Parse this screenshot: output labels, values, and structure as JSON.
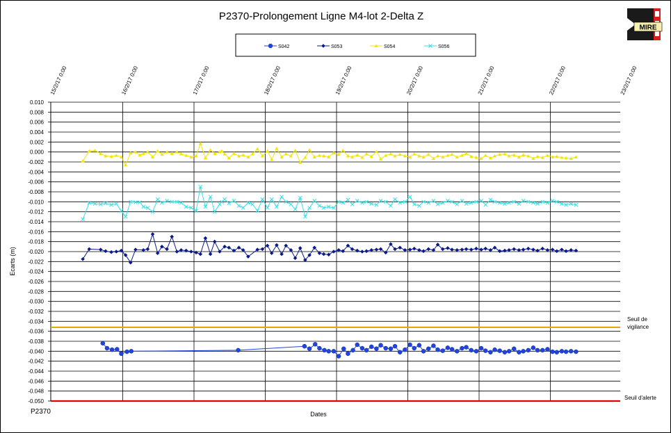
{
  "chart_data": {
    "type": "line",
    "title": "P2370-Prolongement Ligne M4-lot 2-Delta Z",
    "xlabel": "Dates",
    "ylabel": "Ecarts (m)",
    "footer_label": "P2370",
    "ylim": [
      -0.05,
      0.01
    ],
    "y_step": 0.002,
    "y_tick_labels": [
      "0.010",
      "0.008",
      "0.006",
      "0.004",
      "0.002",
      "0.000",
      "-0.002",
      "-0.004",
      "-0.006",
      "-0.008",
      "-0.010",
      "-0.012",
      "-0.014",
      "-0.016",
      "-0.018",
      "-0.020",
      "-0.022",
      "-0.024",
      "-0.026",
      "-0.028",
      "-0.030",
      "-0.032",
      "-0.034",
      "-0.036",
      "-0.038",
      "-0.040",
      "-0.042",
      "-0.044",
      "-0.046",
      "-0.048",
      "-0.050"
    ],
    "xlim_days": [
      0,
      8
    ],
    "x_tick_labels": [
      "15/2/17 0:00",
      "16/2/17 0:00",
      "17/2/17 0:00",
      "18/2/17 0:00",
      "19/2/17 0:00",
      "20/2/17 0:00",
      "21/2/17 0:00",
      "22/2/17 0:00",
      "23/2/17 0:00"
    ],
    "legend": [
      "S042",
      "S053",
      "S054",
      "S056"
    ],
    "thresholds": [
      {
        "name": "Seuil de vigilance",
        "line1": "Seuil de",
        "line2": "vigilance",
        "value": -0.0352,
        "color": "#e8a800"
      },
      {
        "name": "Seuil d'alerte",
        "line1": "Seuil d'alerte",
        "line2": "",
        "value": -0.05,
        "color": "#e00000"
      }
    ],
    "logo_text": "MIRE",
    "series": [
      {
        "name": "S054",
        "color": "#f2e600",
        "marker": "tri",
        "x": [
          0.44,
          0.53,
          0.61,
          0.69,
          0.76,
          0.84,
          0.91,
          0.98,
          1.04,
          1.11,
          1.18,
          1.24,
          1.29,
          1.35,
          1.42,
          1.49,
          1.55,
          1.62,
          1.69,
          1.76,
          1.82,
          1.89,
          1.96,
          2.03,
          2.09,
          2.16,
          2.23,
          2.29,
          2.36,
          2.39,
          2.43,
          2.49,
          2.56,
          2.63,
          2.69,
          2.76,
          2.82,
          2.89,
          2.96,
          3.03,
          3.09,
          3.16,
          3.23,
          3.29,
          3.36,
          3.42,
          3.49,
          3.56,
          3.62,
          3.69,
          3.76,
          3.82,
          3.89,
          3.96,
          4.03,
          4.09,
          4.16,
          4.22,
          4.29,
          4.36,
          4.42,
          4.49,
          4.56,
          4.62,
          4.69,
          4.76,
          4.82,
          4.89,
          4.96,
          5.03,
          5.09,
          5.16,
          5.22,
          5.29,
          5.36,
          5.42,
          5.49,
          5.56,
          5.62,
          5.69,
          5.76,
          5.82,
          5.89,
          5.96,
          6.03,
          6.09,
          6.16,
          6.22,
          6.29,
          6.36,
          6.42,
          6.49,
          6.56,
          6.62,
          6.69,
          6.76,
          6.82,
          6.89,
          6.96,
          7.03,
          7.09,
          7.16,
          7.22,
          7.29,
          7.36
        ],
        "y": [
          -0.0018,
          0.0002,
          0.0003,
          -0.0003,
          -0.0008,
          -0.0009,
          -0.0007,
          -0.001,
          -0.0026,
          -0.0002,
          0.0,
          -0.0006,
          -0.0003,
          0.0,
          -0.001,
          0.0002,
          -0.0005,
          0.0,
          -0.0003,
          0.0,
          -0.0004,
          -0.0007,
          -0.001,
          -0.0008,
          0.0017,
          -0.0012,
          0.0004,
          -0.0003,
          0.0,
          0.0002,
          -0.0004,
          -0.0012,
          -0.0003,
          -0.0008,
          -0.0006,
          -0.001,
          -0.0004,
          0.0006,
          -0.0008,
          0.0002,
          -0.0015,
          0.0007,
          -0.001,
          -0.0004,
          -0.0008,
          0.0003,
          -0.0021,
          -0.0011,
          0.0004,
          -0.001,
          -0.0007,
          -0.0008,
          -0.001,
          -0.0002,
          -0.0005,
          0.0003,
          -0.0008,
          -0.001,
          -0.0006,
          -0.0011,
          -0.0004,
          -0.0009,
          0.0001,
          -0.0014,
          -0.0007,
          -0.0004,
          -0.0008,
          -0.0005,
          -0.0008,
          -0.001,
          -0.0004,
          -0.0008,
          -0.001,
          -0.0005,
          -0.0013,
          -0.0008,
          -0.001,
          -0.0007,
          -0.0005,
          -0.001,
          -0.0007,
          -0.0003,
          -0.0009,
          -0.0011,
          -0.0013,
          -0.0007,
          -0.0012,
          -0.0008,
          -0.0005,
          -0.0004,
          -0.0008,
          -0.0006,
          -0.001,
          -0.0006,
          -0.0008,
          -0.0013,
          -0.0009,
          -0.0011,
          -0.0007,
          -0.001,
          -0.0009,
          -0.0011,
          -0.0012,
          -0.0013,
          -0.001
        ]
      },
      {
        "name": "S056",
        "color": "#33e0e8",
        "marker": "x",
        "x": [
          0.44,
          0.53,
          0.61,
          0.69,
          0.76,
          0.84,
          0.91,
          0.98,
          1.04,
          1.11,
          1.18,
          1.24,
          1.29,
          1.35,
          1.42,
          1.49,
          1.55,
          1.62,
          1.69,
          1.76,
          1.82,
          1.89,
          1.96,
          2.03,
          2.09,
          2.16,
          2.23,
          2.29,
          2.36,
          2.39,
          2.43,
          2.49,
          2.56,
          2.63,
          2.69,
          2.76,
          2.82,
          2.89,
          2.96,
          3.03,
          3.09,
          3.16,
          3.23,
          3.29,
          3.36,
          3.42,
          3.49,
          3.56,
          3.62,
          3.69,
          3.76,
          3.82,
          3.89,
          3.96,
          4.03,
          4.09,
          4.16,
          4.22,
          4.29,
          4.36,
          4.42,
          4.49,
          4.56,
          4.62,
          4.69,
          4.76,
          4.82,
          4.89,
          4.96,
          5.03,
          5.09,
          5.16,
          5.22,
          5.29,
          5.36,
          5.42,
          5.49,
          5.56,
          5.62,
          5.69,
          5.76,
          5.82,
          5.89,
          5.96,
          6.03,
          6.09,
          6.16,
          6.22,
          6.29,
          6.36,
          6.42,
          6.49,
          6.56,
          6.62,
          6.69,
          6.76,
          6.82,
          6.89,
          6.96,
          7.03,
          7.09,
          7.16,
          7.22,
          7.29,
          7.36
        ],
        "y": [
          -0.0135,
          -0.0102,
          -0.0104,
          -0.0105,
          -0.0103,
          -0.0106,
          -0.0104,
          -0.0118,
          -0.013,
          -0.01,
          -0.0101,
          -0.0101,
          -0.011,
          -0.0112,
          -0.012,
          -0.0095,
          -0.0102,
          -0.0098,
          -0.01,
          -0.01,
          -0.0102,
          -0.011,
          -0.0112,
          -0.0118,
          -0.007,
          -0.011,
          -0.009,
          -0.012,
          -0.0105,
          -0.01,
          -0.0095,
          -0.0103,
          -0.0098,
          -0.0108,
          -0.0112,
          -0.0102,
          -0.0105,
          -0.0118,
          -0.0095,
          -0.0112,
          -0.0095,
          -0.011,
          -0.009,
          -0.01,
          -0.0105,
          -0.0115,
          -0.0092,
          -0.013,
          -0.0112,
          -0.0098,
          -0.0108,
          -0.0112,
          -0.011,
          -0.0112,
          -0.01,
          -0.0102,
          -0.0096,
          -0.0105,
          -0.0098,
          -0.0102,
          -0.01,
          -0.0104,
          -0.0106,
          -0.0098,
          -0.01,
          -0.0108,
          -0.0095,
          -0.0102,
          -0.01,
          -0.009,
          -0.0105,
          -0.0108,
          -0.01,
          -0.0102,
          -0.0098,
          -0.0105,
          -0.0102,
          -0.0098,
          -0.01,
          -0.0105,
          -0.0098,
          -0.0104,
          -0.0102,
          -0.01,
          -0.0098,
          -0.0106,
          -0.0096,
          -0.01,
          -0.0102,
          -0.0104,
          -0.0102,
          -0.01,
          -0.0104,
          -0.0098,
          -0.01,
          -0.0102,
          -0.0104,
          -0.01,
          -0.0102,
          -0.0098,
          -0.01,
          -0.0104,
          -0.0106,
          -0.0104,
          -0.0106
        ]
      },
      {
        "name": "S053",
        "color": "#0a1a8c",
        "marker": "diamond",
        "x": [
          0.44,
          0.53,
          0.69,
          0.76,
          0.84,
          0.91,
          0.98,
          1.04,
          1.11,
          1.18,
          1.29,
          1.35,
          1.42,
          1.49,
          1.55,
          1.62,
          1.69,
          1.76,
          1.82,
          1.89,
          1.96,
          2.03,
          2.09,
          2.16,
          2.23,
          2.29,
          2.36,
          2.43,
          2.49,
          2.56,
          2.63,
          2.69,
          2.76,
          2.89,
          2.96,
          3.03,
          3.09,
          3.16,
          3.23,
          3.29,
          3.36,
          3.42,
          3.49,
          3.56,
          3.62,
          3.69,
          3.76,
          3.82,
          3.89,
          3.96,
          4.03,
          4.09,
          4.16,
          4.22,
          4.29,
          4.36,
          4.42,
          4.49,
          4.56,
          4.62,
          4.69,
          4.76,
          4.82,
          4.89,
          4.96,
          5.03,
          5.09,
          5.16,
          5.22,
          5.29,
          5.36,
          5.42,
          5.49,
          5.56,
          5.62,
          5.69,
          5.76,
          5.82,
          5.89,
          5.96,
          6.03,
          6.09,
          6.16,
          6.22,
          6.29,
          6.36,
          6.42,
          6.49,
          6.56,
          6.62,
          6.69,
          6.76,
          6.82,
          6.89,
          6.96,
          7.03,
          7.09,
          7.16,
          7.22,
          7.29,
          7.36
        ],
        "y": [
          -0.0215,
          -0.0195,
          -0.0196,
          -0.0199,
          -0.0201,
          -0.02,
          -0.0198,
          -0.0207,
          -0.0222,
          -0.0196,
          -0.0197,
          -0.0195,
          -0.0165,
          -0.0203,
          -0.019,
          -0.0195,
          -0.017,
          -0.02,
          -0.0197,
          -0.0198,
          -0.02,
          -0.0202,
          -0.0205,
          -0.0173,
          -0.0205,
          -0.018,
          -0.02,
          -0.019,
          -0.0192,
          -0.0198,
          -0.0192,
          -0.0197,
          -0.021,
          -0.0196,
          -0.0195,
          -0.0188,
          -0.0203,
          -0.0187,
          -0.0205,
          -0.0188,
          -0.0197,
          -0.0213,
          -0.0193,
          -0.0217,
          -0.0207,
          -0.0192,
          -0.0203,
          -0.0205,
          -0.0206,
          -0.02,
          -0.0197,
          -0.0199,
          -0.0188,
          -0.0195,
          -0.0198,
          -0.02,
          -0.0199,
          -0.0197,
          -0.0196,
          -0.0195,
          -0.0202,
          -0.0185,
          -0.0195,
          -0.0192,
          -0.0197,
          -0.0196,
          -0.0194,
          -0.0197,
          -0.0199,
          -0.0195,
          -0.0197,
          -0.0186,
          -0.0195,
          -0.0193,
          -0.0196,
          -0.0197,
          -0.0196,
          -0.0195,
          -0.0196,
          -0.0194,
          -0.0196,
          -0.0194,
          -0.0197,
          -0.0192,
          -0.0199,
          -0.0198,
          -0.0197,
          -0.0195,
          -0.0197,
          -0.0196,
          -0.0194,
          -0.0196,
          -0.0198,
          -0.0194,
          -0.0197,
          -0.0196,
          -0.0199,
          -0.0196,
          -0.0199,
          -0.0197,
          -0.0198
        ]
      },
      {
        "name": "S042",
        "color": "#2244dd",
        "marker": "circle",
        "x": [
          0.72,
          0.78,
          0.85,
          0.92,
          0.98,
          1.06,
          1.12,
          2.62,
          3.55,
          3.62,
          3.7,
          3.76,
          3.83,
          3.89,
          3.96,
          4.03,
          4.1,
          4.16,
          4.23,
          4.29,
          4.36,
          4.42,
          4.49,
          4.56,
          4.62,
          4.69,
          4.76,
          4.82,
          4.89,
          4.96,
          5.03,
          5.09,
          5.16,
          5.22,
          5.29,
          5.36,
          5.42,
          5.49,
          5.56,
          5.62,
          5.69,
          5.76,
          5.82,
          5.89,
          5.96,
          6.03,
          6.09,
          6.16,
          6.22,
          6.29,
          6.36,
          6.42,
          6.49,
          6.56,
          6.62,
          6.69,
          6.76,
          6.82,
          6.89,
          6.96,
          7.03,
          7.09,
          7.16,
          7.22,
          7.29,
          7.36
        ],
        "y": [
          -0.0384,
          -0.0394,
          -0.0397,
          -0.0396,
          -0.0405,
          -0.0401,
          -0.04,
          -0.0398,
          -0.039,
          -0.0395,
          -0.0386,
          -0.0394,
          -0.0398,
          -0.04,
          -0.04,
          -0.041,
          -0.0395,
          -0.0405,
          -0.0398,
          -0.0387,
          -0.0394,
          -0.0398,
          -0.0391,
          -0.0395,
          -0.0388,
          -0.0394,
          -0.0395,
          -0.039,
          -0.0402,
          -0.0397,
          -0.0387,
          -0.0394,
          -0.0388,
          -0.04,
          -0.0395,
          -0.0389,
          -0.0397,
          -0.0399,
          -0.0393,
          -0.0396,
          -0.04,
          -0.0394,
          -0.0392,
          -0.0398,
          -0.04,
          -0.0394,
          -0.0399,
          -0.0402,
          -0.0397,
          -0.0399,
          -0.0402,
          -0.04,
          -0.0395,
          -0.0402,
          -0.04,
          -0.0398,
          -0.0393,
          -0.0398,
          -0.0398,
          -0.0396,
          -0.0401,
          -0.0402,
          -0.04,
          -0.0401,
          -0.04,
          -0.0401
        ]
      }
    ]
  }
}
